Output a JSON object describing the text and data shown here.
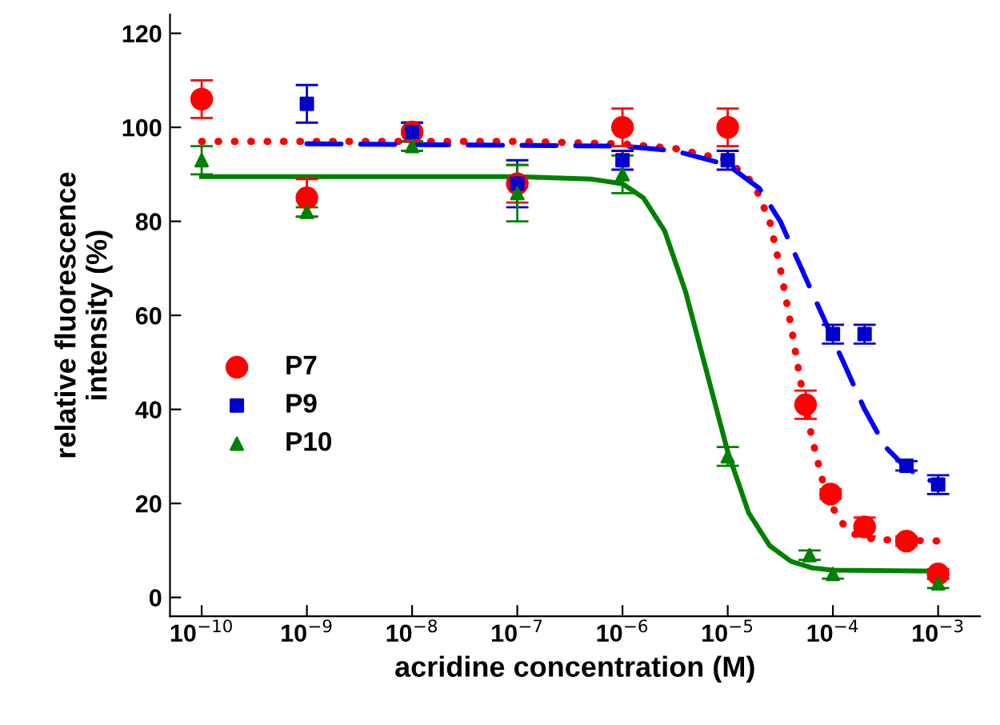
{
  "chart_data": {
    "type": "scatter",
    "xlabel": "acridine concentration (M)",
    "ylabel": "relative fluorescence\nintensity (%)",
    "log": "x",
    "xlim": [
      5e-11,
      0.0025
    ],
    "ylim": [
      -4,
      124
    ],
    "xticks": [
      {
        "value": 1e-10,
        "label": "10$^{−10}$"
      },
      {
        "value": 1e-09,
        "label": "10$^{−9}$"
      },
      {
        "value": 1e-08,
        "label": "10$^{−8}$"
      },
      {
        "value": 1e-07,
        "label": "10$^{−7}$"
      },
      {
        "value": 1e-06,
        "label": "10$^{−6}$"
      },
      {
        "value": 1e-05,
        "label": "10$^{−5}$"
      },
      {
        "value": 0.0001,
        "label": "10$^{−4}$"
      },
      {
        "value": 0.001,
        "label": "10$^{−3}$"
      }
    ],
    "yticks": [
      0,
      20,
      40,
      60,
      80,
      100,
      120
    ],
    "grid": false,
    "legend": "left",
    "series": [
      {
        "name": "P7",
        "marker": "circle",
        "color": "#ff0000",
        "x": [
          1e-10,
          1e-09,
          1e-08,
          1e-07,
          1e-06,
          1e-05,
          5.5e-05,
          9.5e-05,
          0.0002,
          0.0005,
          0.001
        ],
        "values": [
          106,
          85,
          99,
          88,
          100,
          100,
          41,
          22,
          15,
          12,
          5
        ],
        "errors": [
          4,
          4,
          2,
          4,
          4,
          4,
          3,
          1,
          2,
          1,
          1
        ]
      },
      {
        "name": "P9",
        "marker": "square",
        "color": "#0000cc",
        "x": [
          1e-09,
          1e-08,
          1e-07,
          1e-06,
          1e-05,
          0.0001,
          0.0002,
          0.0005,
          0.001
        ],
        "values": [
          105,
          99,
          88,
          93,
          93,
          56,
          56,
          28,
          24
        ],
        "errors": [
          4,
          2,
          5,
          2,
          2,
          2,
          2,
          1,
          2
        ]
      },
      {
        "name": "P10",
        "marker": "triangle",
        "color": "#008000",
        "x": [
          1e-10,
          1e-09,
          1e-08,
          1e-07,
          1e-06,
          1e-05,
          6e-05,
          0.0001,
          0.001
        ],
        "values": [
          93,
          82,
          96,
          86,
          90,
          30,
          9,
          5,
          3
        ],
        "errors": [
          3,
          1,
          1,
          6,
          4,
          2,
          1,
          1,
          1
        ]
      },
      {
        "type": "line",
        "line_style": "dotted",
        "color": "#ff0000",
        "x": [
          1e-10,
          1e-07,
          1e-06,
          3.16e-06,
          1e-05,
          1.78e-05,
          2.51e-05,
          3.16e-05,
          3.98e-05,
          5.01e-05,
          6.31e-05,
          7.94e-05,
          0.0001,
          0.000126,
          0.000158,
          0.000251,
          0.001
        ],
        "values": [
          97,
          97,
          96.5,
          95.5,
          93,
          88,
          80,
          70,
          58,
          45,
          34,
          25,
          19,
          15.5,
          13.5,
          12.3,
          12
        ]
      },
      {
        "type": "line",
        "line_style": "dashed",
        "color": "#0000ff",
        "x": [
          1e-09,
          1e-06,
          3.16e-06,
          1e-05,
          2e-05,
          3.16e-05,
          5.01e-05,
          7.94e-05,
          0.000126,
          0.0002,
          0.000316,
          0.000501,
          0.000794,
          0.001
        ],
        "values": [
          96.5,
          96,
          95,
          92,
          87,
          80,
          70,
          60,
          50,
          40,
          32,
          27.5,
          25,
          24.5
        ]
      },
      {
        "type": "line",
        "line_style": "solid",
        "color": "#008000",
        "x": [
          1e-10,
          1e-07,
          5e-07,
          1e-06,
          1.58e-06,
          2.51e-06,
          3.98e-06,
          6.31e-06,
          1e-05,
          1.58e-05,
          2.51e-05,
          3.98e-05,
          6.31e-05,
          0.0001,
          0.001
        ],
        "values": [
          89.5,
          89.5,
          89,
          88,
          85,
          78,
          65,
          48,
          31,
          18,
          11,
          7.7,
          6.3,
          5.8,
          5.6
        ]
      }
    ]
  }
}
